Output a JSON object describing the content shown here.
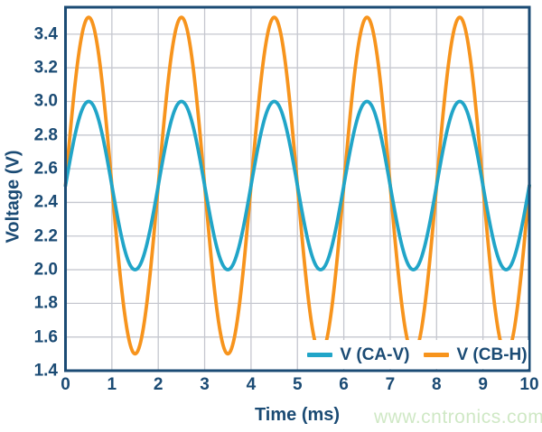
{
  "chart_data": {
    "type": "line",
    "title": "",
    "xlabel": "Time (ms)",
    "ylabel": "Voltage (V)",
    "xlim": [
      0,
      10
    ],
    "ylim": [
      1.4,
      3.56
    ],
    "x_ticks": [
      0,
      1,
      2,
      3,
      4,
      5,
      6,
      7,
      8,
      9,
      10
    ],
    "y_ticks": [
      1.4,
      1.6,
      1.8,
      2.0,
      2.2,
      2.4,
      2.6,
      2.8,
      3.0,
      3.2,
      3.4
    ],
    "grid": true,
    "legend_position": "inside-bottom-right",
    "x_sample_ms": [
      0,
      0.5,
      1,
      1.5,
      2,
      2.5,
      3,
      3.5,
      4,
      4.5,
      5,
      5.5,
      6,
      6.5,
      7,
      7.5,
      8,
      8.5,
      9,
      9.5,
      10
    ],
    "series": [
      {
        "name": "V (CA-V)",
        "color": "#21a5c8",
        "waveform": "sine",
        "offset_v": 2.5,
        "amplitude_v": 0.5,
        "period_ms": 2,
        "phase": "rising through 2.5 V at t=0, peak at t=0.5 ms",
        "values": [
          2.5,
          3.0,
          2.5,
          2.0,
          2.5,
          3.0,
          2.5,
          2.0,
          2.5,
          3.0,
          2.5,
          2.0,
          2.5,
          3.0,
          2.5,
          2.0,
          2.5,
          3.0,
          2.5,
          2.0,
          2.5
        ]
      },
      {
        "name": "V (CB-H)",
        "color": "#f7941d",
        "waveform": "sine",
        "offset_v": 2.5,
        "amplitude_v": 1.0,
        "period_ms": 2,
        "phase": "rising through 2.5 V at t=0, peak at t=0.5 ms",
        "values": [
          2.5,
          3.5,
          2.5,
          1.5,
          2.5,
          3.5,
          2.5,
          1.5,
          2.5,
          3.5,
          2.5,
          1.5,
          2.5,
          3.5,
          2.5,
          1.5,
          2.5,
          3.5,
          2.5,
          1.5,
          2.5
        ]
      }
    ]
  },
  "watermark": {
    "text": "www.cntronics.com",
    "color": "#cfe8c5"
  },
  "colors": {
    "axis_frame": "#1b4b74",
    "tick_text": "#1b4b74",
    "grid": "#c5c7cf",
    "background": "#ffffff"
  }
}
